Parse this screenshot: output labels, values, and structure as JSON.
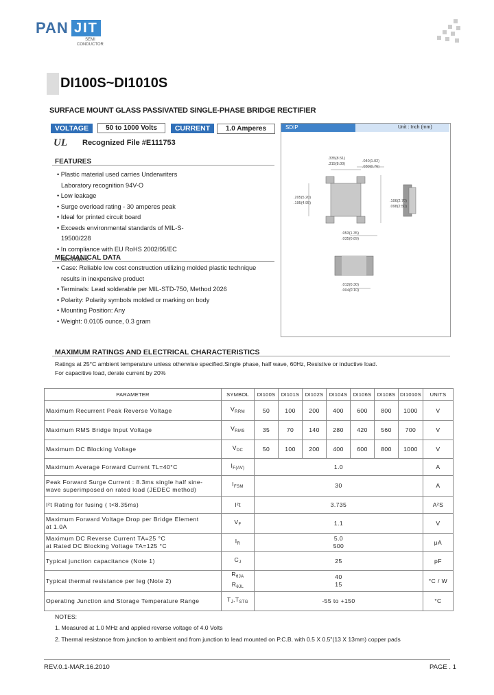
{
  "header": {
    "logo_pan": "PAN",
    "logo_jit": "JIT",
    "logo_sub": [
      "SEMI",
      "CONDUCTOR"
    ],
    "part": "DI100S~DI1010S",
    "subtitle": "SURFACE MOUNT GLASS PASSIVATED SINGLE-PHASE BRIDGE RECTIFIER"
  },
  "badges": {
    "voltage_label": "VOLTAGE",
    "voltage_value": "50 to 1000 Volts",
    "current_label": "CURRENT",
    "current_value": "1.0 Amperes"
  },
  "recognized": "Recognized File #E111753",
  "features": {
    "title": "FEATURES",
    "items": [
      "Plastic material used carries Underwriters Laboratory recognition 94V-O",
      "Low leakage",
      "Surge overload rating - 30 amperes peak",
      "Ideal for printed circuit board",
      "Exceeds environmental standards of  MIL-S-19500/228",
      "In compliance with EU RoHS 2002/95/EC directives"
    ]
  },
  "mechanical": {
    "title": "MECHANICAL DATA",
    "items": [
      "Case: Reliable low cost construction utilizing molded plastic technique results in inexpensive product",
      "Terminals: Lead solderable per MIL-STD-750, Method 2026",
      "Polarity: Polarity symbols molded or marking on body",
      "Mounting Position: Any",
      "Weight: 0.0105 ounce, 0.3 gram"
    ]
  },
  "package": {
    "name": "SDIP",
    "unit": "Unit : Inch (mm)",
    "dims": [
      ".335(8.51)",
      ".315(8.00)",
      ".205(5.20)",
      ".195(4.95)",
      ".106(2.70)",
      ".098(2.50)",
      ".040(1.02)",
      ".030(0.76)",
      ".053(1.35)",
      ".035(0.89)",
      ".012(0.30)",
      ".004(0.10)"
    ]
  },
  "ratings": {
    "title": "MAXIMUM RATINGS AND ELECTRICAL CHARACTERISTICS",
    "notes": [
      "Ratings at 25°C ambient temperature unless otherwise specified.Single phase, half wave, 60Hz, Resistive or inductive load.",
      "For capacitive load, derate current by 20%"
    ]
  },
  "table": {
    "header": [
      "PARAMETER",
      "SYMBOL",
      "DI100S",
      "DI101S",
      "DI102S",
      "DI104S",
      "DI106S",
      "DI108S",
      "DI1010S",
      "UNITS"
    ],
    "rows": [
      {
        "parameter": [
          "Maximum Recurrent Peak Reverse Voltage"
        ],
        "symbol": [
          [
            {
              "b": "V",
              "s": "RRM"
            }
          ]
        ],
        "values": [
          "50",
          "100",
          "200",
          "400",
          "600",
          "800",
          "1000"
        ],
        "unit": "V"
      },
      {
        "parameter": [
          "Maximum RMS Bridge Input Voltage"
        ],
        "symbol": [
          [
            {
              "b": "V",
              "s": "RMS"
            }
          ]
        ],
        "values": [
          "35",
          "70",
          "140",
          "280",
          "420",
          "560",
          "700"
        ],
        "unit": "V"
      },
      {
        "parameter": [
          "Maximum DC Blocking Voltage"
        ],
        "symbol": [
          [
            {
              "b": "V",
              "s": "DC"
            }
          ]
        ],
        "values": [
          "50",
          "100",
          "200",
          "400",
          "600",
          "800",
          "1000"
        ],
        "unit": "V"
      },
      {
        "parameter": [
          "Maximum Average Forward  Current  TL=40°C"
        ],
        "symbol": [
          [
            {
              "b": "I",
              "s": "F(AV)"
            }
          ]
        ],
        "value": [
          "1.0"
        ],
        "unit": "A"
      },
      {
        "parameter": [
          "Peak Forward Surge Current : 8.3ms single half sine-",
          "wave superimposed on rated load (JEDEC method)"
        ],
        "symbol": [
          [
            {
              "b": "I",
              "s": "FSM"
            }
          ]
        ],
        "value": [
          "30"
        ],
        "unit": "A"
      },
      {
        "parameter": [
          "I²t Rating for fusing ( t<8.35ms)"
        ],
        "symbol": [
          [
            {
              "b": "I²t",
              "s": ""
            }
          ]
        ],
        "value": [
          "3.735"
        ],
        "unit": "A²S"
      },
      {
        "parameter": [
          "Maximum Forward Voltage Drop per Bridge Element",
          "at 1.0A"
        ],
        "symbol": [
          [
            {
              "b": "V",
              "s": "F"
            }
          ]
        ],
        "value": [
          "1.1"
        ],
        "unit": "V"
      },
      {
        "parameter": [
          "Maximum DC Reverse Current  TA=25 °C",
          "at Rated DC Blocking Voltage TA=125 °C"
        ],
        "symbol": [
          [
            {
              "b": "I",
              "s": "R"
            }
          ]
        ],
        "value": [
          "5.0",
          "500"
        ],
        "unit": "μA"
      },
      {
        "parameter": [
          "Typical junction capacitance (Note 1)"
        ],
        "symbol": [
          [
            {
              "b": "C",
              "s": "J"
            }
          ]
        ],
        "value": [
          "25"
        ],
        "unit": "pF"
      },
      {
        "parameter": [
          "Typical thermal resistance per leg (Note 2)"
        ],
        "symbol": [
          [
            {
              "b": "R",
              "s": "θJA"
            }
          ],
          [
            {
              "b": "R",
              "s": "θJL"
            }
          ]
        ],
        "value": [
          "40",
          "15"
        ],
        "unit": "°C / W"
      },
      {
        "parameter": [
          "Operating Junction and Storage Temperature Range"
        ],
        "symbol": [
          [
            {
              "b": "T",
              "s": "J"
            },
            {
              "b": ",T",
              "s": "STG"
            }
          ]
        ],
        "value": [
          "-55 to +150"
        ],
        "unit": "°C"
      }
    ]
  },
  "notes": {
    "title": "NOTES:",
    "items": [
      "1. Measured at 1.0 MHz and applied reverse voltage of 4.0 Volts",
      "2. Thermal resistance from junction to ambient and from junction to lead mounted on P.C.B. with 0.5 X 0.5\"(13 X 13mm) copper pads"
    ]
  },
  "footer": {
    "revision": "REV.0.1-MAR.16.2010",
    "page": "PAGE . 1"
  }
}
